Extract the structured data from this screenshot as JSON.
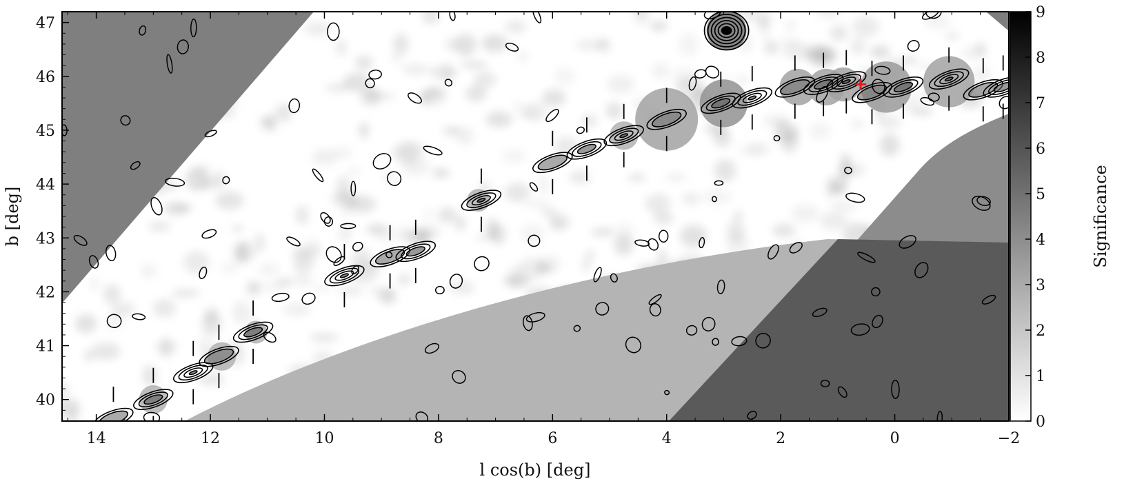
{
  "chart_data": {
    "type": "heatmap",
    "title": "",
    "xlabel": "l cos(b) [deg]",
    "ylabel": "b [deg]",
    "colorbar_label": "Significance",
    "xlim": [
      14.6,
      -2.0
    ],
    "ylim": [
      39.6,
      47.2
    ],
    "x_ticks": [
      14,
      12,
      10,
      8,
      6,
      4,
      2,
      0,
      -2
    ],
    "x_tick_labels": [
      "14",
      "12",
      "10",
      "8",
      "6",
      "4",
      "2",
      "0",
      "−2"
    ],
    "y_ticks": [
      40,
      41,
      42,
      43,
      44,
      45,
      46,
      47
    ],
    "y_tick_labels": [
      "40",
      "41",
      "42",
      "43",
      "44",
      "45",
      "46",
      "47"
    ],
    "colorbar_ticks": [
      0,
      1,
      2,
      3,
      4,
      5,
      6,
      7,
      8,
      9
    ],
    "colorbar_range": [
      0,
      9
    ],
    "grid": false,
    "colormap": [
      "#ffffff",
      "#000000"
    ],
    "masked_region_color": "#7f7f7f",
    "marker": {
      "symbol": "+",
      "l": 0.6,
      "b": 45.85,
      "color": "#e31a1c"
    },
    "stream_track": [
      {
        "l": 13.7,
        "b": 39.65
      },
      {
        "l": 13.0,
        "b": 40.0
      },
      {
        "l": 12.3,
        "b": 40.5
      },
      {
        "l": 11.85,
        "b": 40.8
      },
      {
        "l": 11.25,
        "b": 41.25
      },
      {
        "l": 9.65,
        "b": 42.3
      },
      {
        "l": 8.85,
        "b": 42.65
      },
      {
        "l": 8.4,
        "b": 42.75
      },
      {
        "l": 7.25,
        "b": 43.7
      },
      {
        "l": 6.0,
        "b": 44.4
      },
      {
        "l": 5.4,
        "b": 44.65
      },
      {
        "l": 4.75,
        "b": 44.9
      },
      {
        "l": 4.0,
        "b": 45.2
      },
      {
        "l": 3.05,
        "b": 45.5
      },
      {
        "l": 2.5,
        "b": 45.6
      },
      {
        "l": 1.75,
        "b": 45.8
      },
      {
        "l": 1.25,
        "b": 45.85
      },
      {
        "l": 0.85,
        "b": 45.9
      },
      {
        "l": 0.4,
        "b": 45.7
      },
      {
        "l": -0.15,
        "b": 45.8
      },
      {
        "l": -0.95,
        "b": 45.95
      },
      {
        "l": -1.55,
        "b": 45.75
      },
      {
        "l": -1.9,
        "b": 45.8
      }
    ],
    "stream_fields": [
      {
        "l": 13.0,
        "b": 40.0,
        "r": 0.25,
        "peak": 5.0
      },
      {
        "l": 11.8,
        "b": 40.8,
        "r": 0.25,
        "peak": 5.0
      },
      {
        "l": 11.2,
        "b": 41.25,
        "r": 0.2,
        "peak": 5.0
      },
      {
        "l": 7.3,
        "b": 43.7,
        "r": 0.2,
        "peak": 5.0
      },
      {
        "l": 4.75,
        "b": 44.9,
        "r": 0.25,
        "peak": 5.0
      },
      {
        "l": 4.0,
        "b": 45.2,
        "r": 0.55,
        "peak": 6.0
      },
      {
        "l": 3.0,
        "b": 45.5,
        "r": 0.42,
        "peak": 7.0
      },
      {
        "l": 1.7,
        "b": 45.8,
        "r": 0.32,
        "peak": 6.0
      },
      {
        "l": 1.2,
        "b": 45.8,
        "r": 0.32,
        "peak": 6.0
      },
      {
        "l": 0.9,
        "b": 45.85,
        "r": 0.3,
        "peak": 6.0
      },
      {
        "l": 0.15,
        "b": 45.8,
        "r": 0.45,
        "peak": 6.5
      },
      {
        "l": -0.95,
        "b": 45.9,
        "r": 0.45,
        "peak": 6.0
      },
      {
        "l": 2.95,
        "b": 46.85,
        "r": 0.35,
        "peak": 9.0
      }
    ]
  }
}
